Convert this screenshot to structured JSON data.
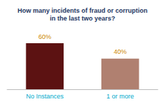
{
  "chart_data": {
    "type": "bar",
    "title": "How many incidents of fraud or corruption\nin the last two years?",
    "categories": [
      "No Instances",
      "1 or more"
    ],
    "values": [
      60,
      40
    ],
    "value_labels": [
      "60%",
      "40%"
    ],
    "colors": [
      "#5c1212",
      "#b08070"
    ],
    "ylim": [
      0,
      85
    ],
    "grid": false,
    "data_labels": true,
    "tick_labels": "x"
  }
}
